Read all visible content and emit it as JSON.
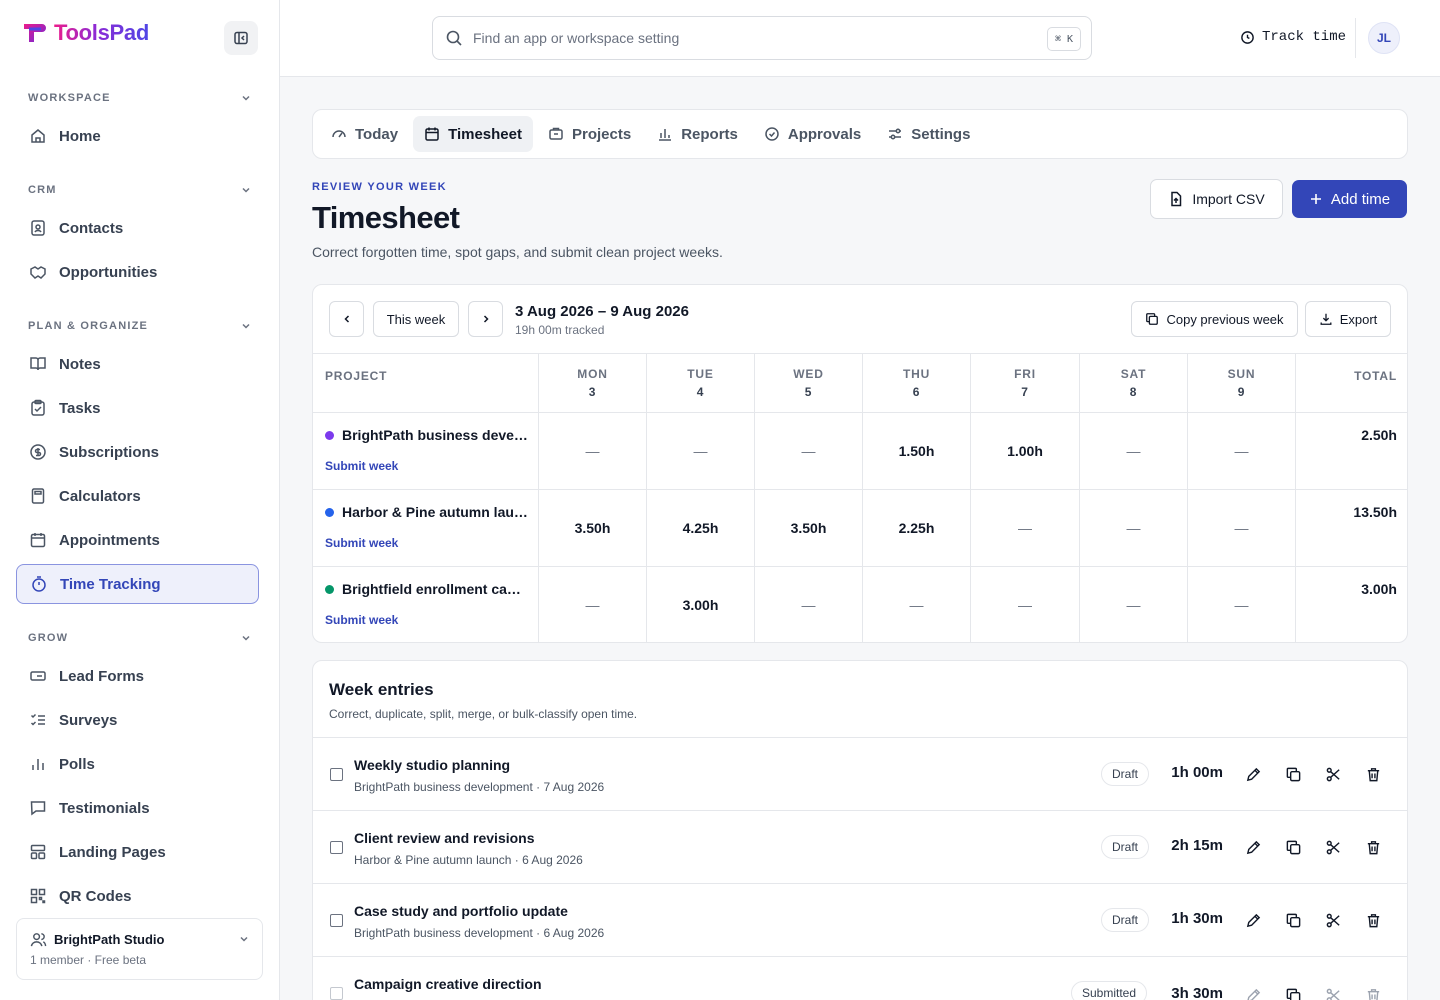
{
  "brand": {
    "name": "ToolsPad"
  },
  "sidebar": {
    "sections": [
      {
        "label": "WORKSPACE"
      },
      {
        "label": "CRM"
      },
      {
        "label": "PLAN & ORGANIZE"
      },
      {
        "label": "GROW"
      }
    ],
    "items": [
      {
        "label": "Home",
        "icon": "home-icon"
      },
      {
        "label": "Contacts",
        "icon": "contact-card-icon"
      },
      {
        "label": "Opportunities",
        "icon": "handshake-icon"
      },
      {
        "label": "Notes",
        "icon": "book-icon"
      },
      {
        "label": "Tasks",
        "icon": "clipboard-check-icon"
      },
      {
        "label": "Subscriptions",
        "icon": "dollar-circle-icon"
      },
      {
        "label": "Calculators",
        "icon": "calculator-icon"
      },
      {
        "label": "Appointments",
        "icon": "calendar-icon"
      },
      {
        "label": "Time Tracking",
        "icon": "stopwatch-icon",
        "active": true
      },
      {
        "label": "Lead Forms",
        "icon": "form-icon"
      },
      {
        "label": "Surveys",
        "icon": "checklist-icon"
      },
      {
        "label": "Polls",
        "icon": "bar-chart-icon"
      },
      {
        "label": "Testimonials",
        "icon": "quote-bubble-icon"
      },
      {
        "label": "Landing Pages",
        "icon": "layout-icon"
      },
      {
        "label": "QR Codes",
        "icon": "qr-code-icon"
      }
    ],
    "workspace": {
      "name": "BrightPath Studio",
      "meta": "1 member · Free beta"
    }
  },
  "topbar": {
    "search_placeholder": "Find an app or workspace setting",
    "shortcut": "⌘ K",
    "track_time": "Track time",
    "avatar_initials": "JL"
  },
  "tabs": [
    {
      "label": "Today",
      "icon": "gauge-icon"
    },
    {
      "label": "Timesheet",
      "icon": "calendar-grid-icon",
      "active": true
    },
    {
      "label": "Projects",
      "icon": "folder-icon"
    },
    {
      "label": "Reports",
      "icon": "bar-chart-icon"
    },
    {
      "label": "Approvals",
      "icon": "check-circle-icon"
    },
    {
      "label": "Settings",
      "icon": "sliders-icon"
    }
  ],
  "header": {
    "eyebrow": "REVIEW YOUR WEEK",
    "title": "Timesheet",
    "subtitle": "Correct forgotten time, spot gaps, and submit clean project weeks.",
    "import_label": "Import CSV",
    "add_label": "Add time"
  },
  "timesheet": {
    "this_week_label": "This week",
    "range": "3 Aug 2026 – 9 Aug 2026",
    "tracked": "19h 00m tracked",
    "copy_label": "Copy previous week",
    "export_label": "Export",
    "project_header": "PROJECT",
    "total_header": "TOTAL",
    "days": [
      {
        "name": "MON",
        "num": "3"
      },
      {
        "name": "TUE",
        "num": "4"
      },
      {
        "name": "WED",
        "num": "5"
      },
      {
        "name": "THU",
        "num": "6"
      },
      {
        "name": "FRI",
        "num": "7"
      },
      {
        "name": "SAT",
        "num": "8"
      },
      {
        "name": "SUN",
        "num": "9"
      }
    ],
    "rows": [
      {
        "project": "BrightPath business deve…",
        "color": "#7c3aed",
        "submit": "Submit week",
        "cells": [
          "—",
          "—",
          "—",
          "1.50h",
          "1.00h",
          "—",
          "—"
        ],
        "total": "2.50h"
      },
      {
        "project": "Harbor & Pine autumn lau…",
        "color": "#2563eb",
        "submit": "Submit week",
        "cells": [
          "3.50h",
          "4.25h",
          "3.50h",
          "2.25h",
          "—",
          "—",
          "—"
        ],
        "total": "13.50h"
      },
      {
        "project": "Brightfield enrollment ca…",
        "color": "#059669",
        "submit": "Submit week",
        "cells": [
          "—",
          "3.00h",
          "—",
          "—",
          "—",
          "—",
          "—"
        ],
        "total": "3.00h"
      }
    ]
  },
  "entries": {
    "title": "Week entries",
    "subtitle": "Correct, duplicate, split, merge, or bulk-classify open time.",
    "items": [
      {
        "title": "Weekly studio planning",
        "meta": "BrightPath business development · 7 Aug 2026",
        "status": "Draft",
        "duration": "1h 00m"
      },
      {
        "title": "Client review and revisions",
        "meta": "Harbor & Pine autumn launch · 6 Aug 2026",
        "status": "Draft",
        "duration": "2h 15m"
      },
      {
        "title": "Case study and portfolio update",
        "meta": "BrightPath business development · 6 Aug 2026",
        "status": "Draft",
        "duration": "1h 30m"
      },
      {
        "title": "Campaign creative direction",
        "meta": "",
        "status": "Submitted",
        "duration": "3h 30m"
      }
    ]
  },
  "colors": {
    "accent": "#3346b8",
    "active_bg": "#eef0fb"
  }
}
